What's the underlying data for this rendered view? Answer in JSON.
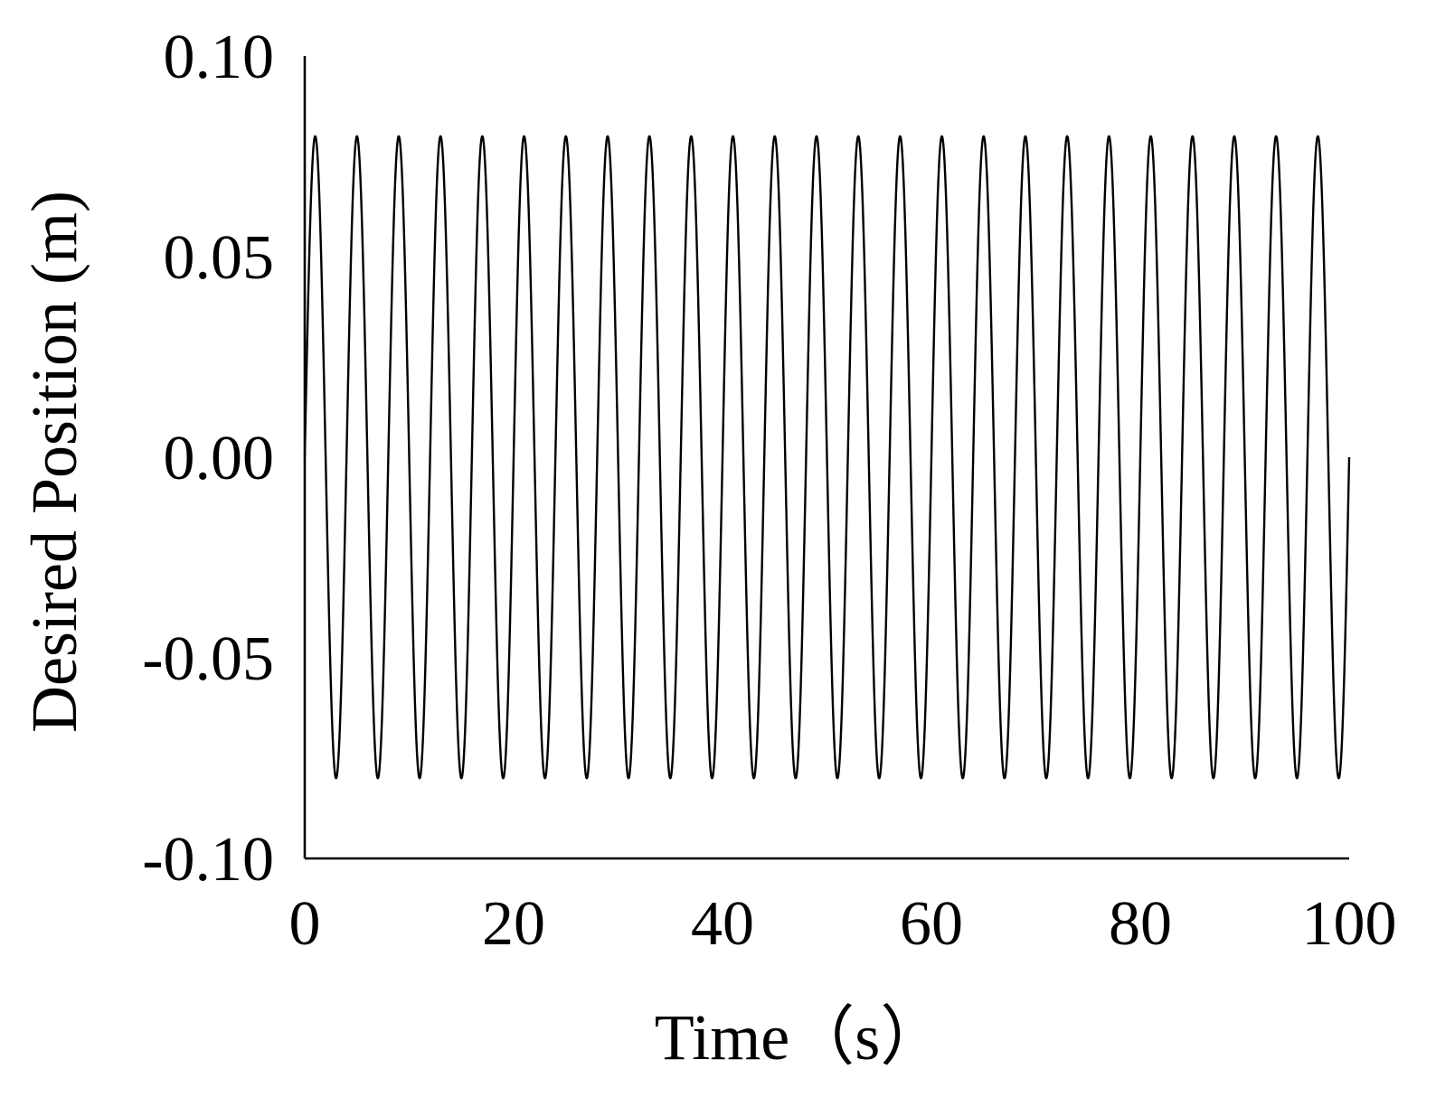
{
  "chart_data": {
    "type": "line",
    "title": "",
    "xlabel": "Time（s）",
    "ylabel": "Desired Position (m)",
    "xlim": [
      0,
      100
    ],
    "ylim": [
      -0.1,
      0.1
    ],
    "xticks": [
      "0",
      "20",
      "40",
      "60",
      "80",
      "100"
    ],
    "yticks": [
      "0.10",
      "0.05",
      "0.00",
      "-0.05",
      "-0.10"
    ],
    "grid": false,
    "legend": "none",
    "series": [
      {
        "function": "sine",
        "amplitude": 0.08,
        "period": 4,
        "phase": 0,
        "x_start": 0,
        "x_end": 100,
        "color": "#000000"
      }
    ]
  }
}
